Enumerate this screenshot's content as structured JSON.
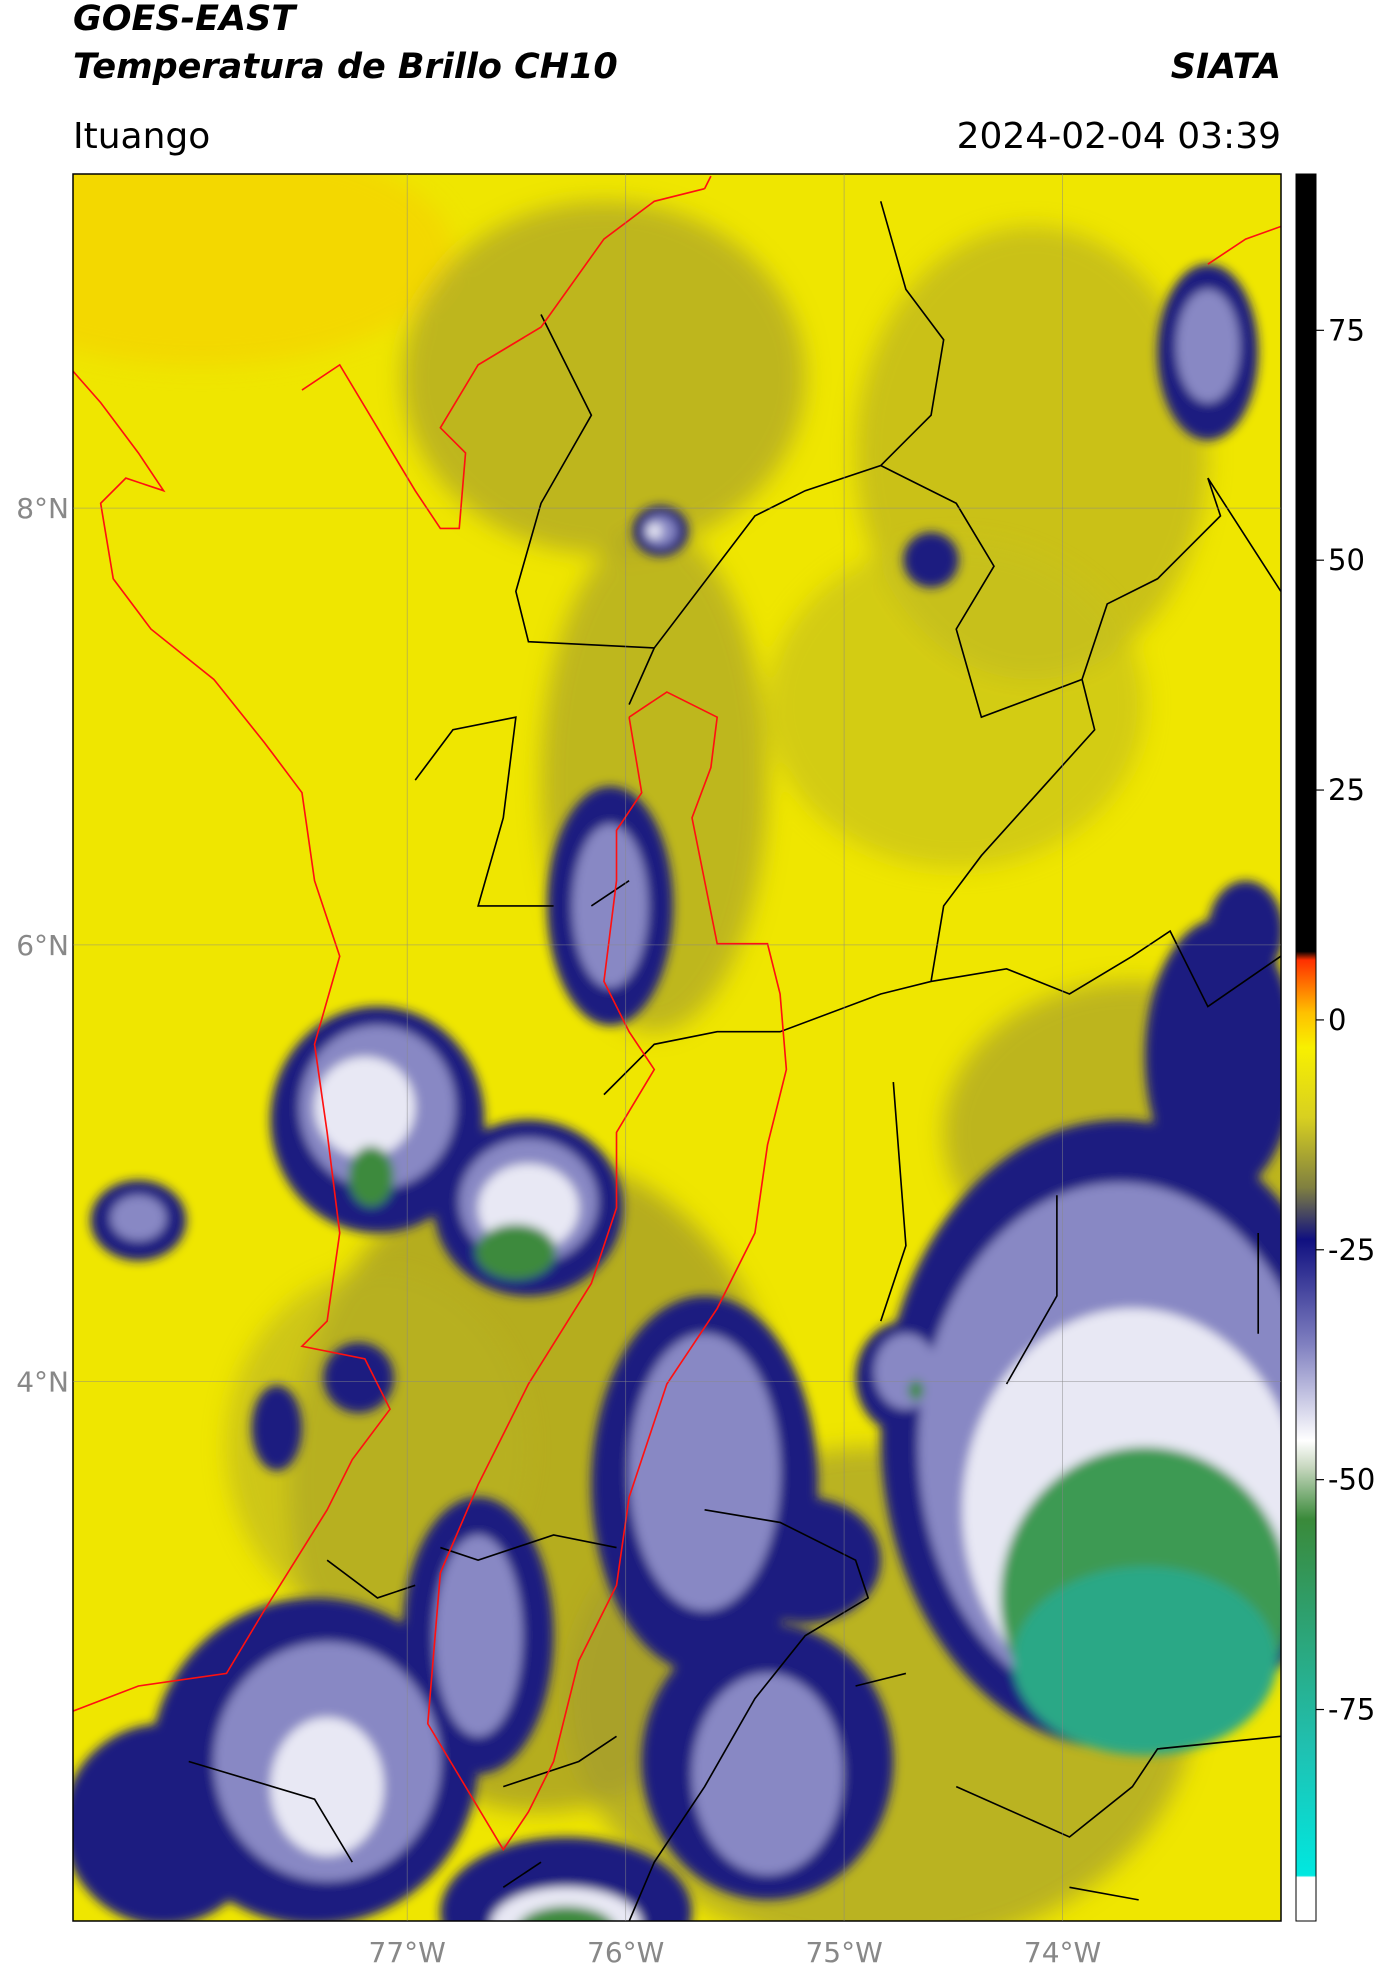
{
  "header": {
    "title": "GOES-EAST",
    "subtitle": "Temperatura de Brillo CH10",
    "source": "SIATA",
    "location": "Ituango",
    "datetime": "2024-02-04 03:39"
  },
  "map": {
    "lonlim": [
      -78.53,
      -73.0
    ],
    "latlim": [
      1.53,
      9.53
    ],
    "lon_ticks": [
      {
        "value": -77,
        "label": "77°W"
      },
      {
        "value": -76,
        "label": "76°W"
      },
      {
        "value": -75,
        "label": "75°W"
      },
      {
        "value": -74,
        "label": "74°W"
      }
    ],
    "lat_ticks": [
      {
        "value": 8,
        "label": "8°N"
      },
      {
        "value": 6,
        "label": "6°N"
      },
      {
        "value": 4,
        "label": "4°N"
      }
    ],
    "grid": true
  },
  "colorbar": {
    "lim": [
      -98,
      92
    ],
    "ticks": [
      75,
      50,
      25,
      0,
      -25,
      -50,
      -75
    ]
  }
}
